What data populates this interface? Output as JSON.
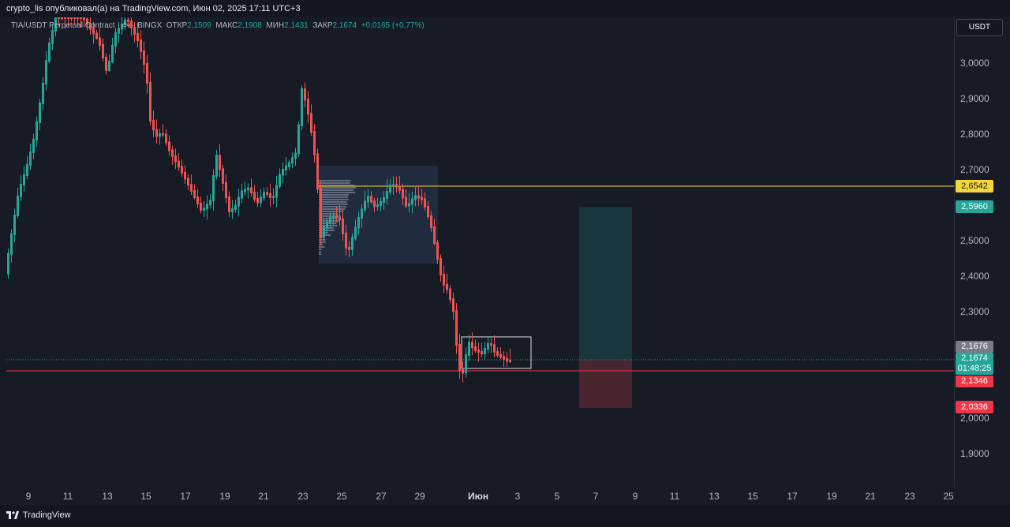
{
  "header": {
    "publish_line": "crypto_lis опубликовал(а) на TradingView.com, Июн 02, 2025 17:11 UTC+3"
  },
  "legend": {
    "symbol": "TIA/USDT Perpetual Contract · 4ч · BINGX",
    "open_label": "ОТКР",
    "open": "2,1509",
    "high_label": "МАКС",
    "high": "2,1908",
    "low_label": "МИН",
    "low": "2,1431",
    "close_label": "ЗАКР",
    "close": "2,1674",
    "change": "+0,0165 (+0,77%)"
  },
  "currency_button": "USDT",
  "y_ticks": [
    "3,0000",
    "2,9000",
    "2,8000",
    "2,7000",
    "2,5000",
    "2,4000",
    "2,3000",
    "2,0000",
    "1,9000"
  ],
  "x_ticks": [
    "9",
    "11",
    "13",
    "15",
    "17",
    "19",
    "21",
    "23",
    "25",
    "27",
    "29",
    "Июн",
    "3",
    "5",
    "7",
    "9",
    "11",
    "13",
    "15",
    "17",
    "19",
    "21",
    "23",
    "25"
  ],
  "price_labels": {
    "resistance": "2,6542",
    "target": "2,5960",
    "prev_close": "2,1676",
    "last": "2,1674",
    "countdown": "01:48:25",
    "entry_line": "2,1346",
    "stop": "2,0336"
  },
  "colors": {
    "up": "#26a69a",
    "down": "#ef5350",
    "resistance_line": "#f5d73a",
    "support_line": "#f23645"
  },
  "footer": {
    "brand": "TradingView"
  }
}
